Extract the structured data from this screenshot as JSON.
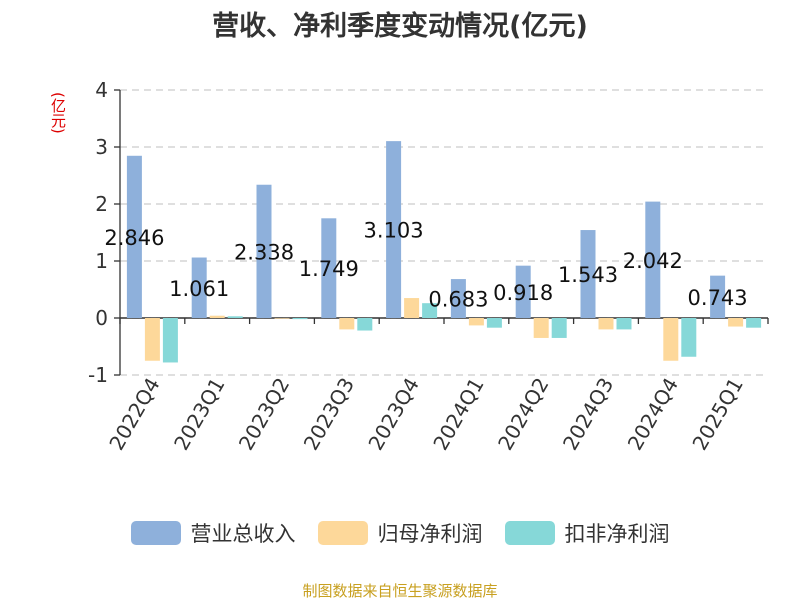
{
  "colors": {
    "revenue": "#8eb0db",
    "net_profit": "#fdd89a",
    "deducted": "#86d8d8",
    "source": "#c8a020",
    "ylabel": "#dd0000"
  },
  "chart_data": {
    "type": "bar",
    "title": "营收、净利季度变动情况(亿元)",
    "ylabel": "(亿元)",
    "ylim": [
      -1,
      4
    ],
    "yticks": [
      -1,
      0,
      1,
      2,
      3,
      4
    ],
    "grid": true,
    "legend_position": "bottom",
    "categories": [
      "2022Q4",
      "2023Q1",
      "2023Q2",
      "2023Q3",
      "2023Q4",
      "2024Q1",
      "2024Q2",
      "2024Q3",
      "2024Q4",
      "2025Q1"
    ],
    "series": [
      {
        "name": "营业总收入",
        "color": "#8eb0db",
        "values": [
          2.846,
          1.061,
          2.338,
          1.749,
          3.103,
          0.683,
          0.918,
          1.543,
          2.042,
          0.743
        ],
        "labels": [
          "2.846",
          "1.061",
          "2.338",
          "1.749",
          "3.103",
          "0.683",
          "0.918",
          "1.543",
          "2.042",
          "0.743"
        ]
      },
      {
        "name": "归母净利润",
        "color": "#fdd89a",
        "values": [
          -0.75,
          0.04,
          -0.01,
          -0.2,
          0.35,
          -0.13,
          -0.35,
          -0.2,
          -0.75,
          -0.15
        ]
      },
      {
        "name": "扣非净利润",
        "color": "#86d8d8",
        "values": [
          -0.78,
          0.03,
          -0.02,
          -0.22,
          0.26,
          -0.17,
          -0.35,
          -0.2,
          -0.68,
          -0.17
        ]
      }
    ]
  },
  "source": "制图数据来自恒生聚源数据库"
}
